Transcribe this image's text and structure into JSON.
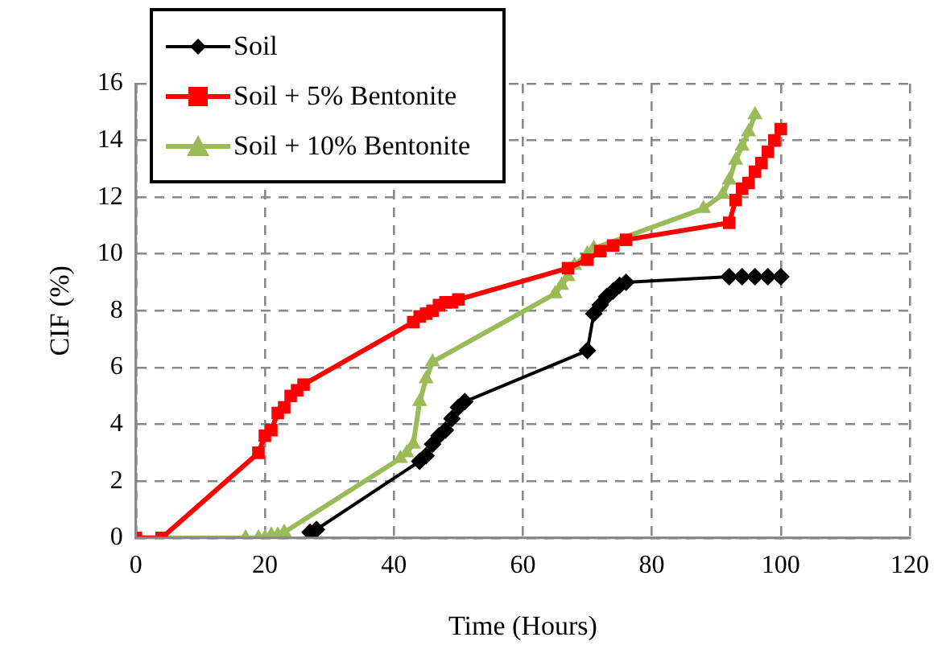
{
  "chart_data": {
    "type": "line",
    "xlabel": "Time (Hours)",
    "ylabel": "CIF (%)",
    "xlim": [
      0,
      120
    ],
    "xticks": [
      0,
      20,
      40,
      60,
      80,
      100,
      120
    ],
    "ylim": [
      0,
      16
    ],
    "yticks": [
      0,
      2,
      4,
      6,
      8,
      10,
      12,
      14,
      16
    ],
    "grid": true,
    "legend": "top left",
    "line_style": "solid",
    "series": [
      {
        "name": "Soil",
        "color": "#000000",
        "marker": "diamond",
        "x": [
          27,
          28,
          44,
          45,
          46,
          47,
          48,
          49,
          50,
          51,
          70,
          71,
          72,
          73,
          74,
          75,
          76,
          92,
          94,
          96,
          98,
          100
        ],
        "values": [
          0.2,
          0.3,
          2.7,
          2.9,
          3.3,
          3.6,
          3.8,
          4.2,
          4.6,
          4.8,
          6.6,
          7.9,
          8.2,
          8.5,
          8.7,
          8.9,
          9.0,
          9.2,
          9.2,
          9.2,
          9.2,
          9.2
        ]
      },
      {
        "name": "Soil + 5% Bentonite",
        "color": "#ff0000",
        "marker": "square",
        "x": [
          0,
          4,
          19,
          20,
          21,
          22,
          23,
          24,
          25,
          26,
          43,
          44,
          45,
          46,
          47,
          48,
          49,
          50,
          67,
          70,
          72,
          74,
          76,
          92,
          93,
          94,
          95,
          96,
          97,
          98,
          99,
          100
        ],
        "values": [
          0,
          0,
          3.0,
          3.6,
          3.8,
          4.4,
          4.6,
          5.0,
          5.2,
          5.4,
          7.6,
          7.8,
          7.9,
          8.0,
          8.2,
          8.3,
          8.3,
          8.4,
          9.5,
          9.8,
          10.1,
          10.3,
          10.5,
          11.1,
          11.9,
          12.3,
          12.5,
          12.9,
          13.2,
          13.6,
          14.0,
          14.4
        ]
      },
      {
        "name": "Soil + 10% Bentonite",
        "color": "#9bbb59",
        "marker": "triangle",
        "x": [
          0,
          17,
          19,
          20,
          21,
          22,
          23,
          41,
          42,
          43,
          44,
          45,
          46,
          65,
          66,
          67,
          68,
          70,
          71,
          88,
          91,
          92,
          93,
          94,
          95,
          96
        ],
        "values": [
          0,
          0,
          0,
          0,
          0.1,
          0.1,
          0.2,
          2.8,
          3.0,
          3.3,
          4.8,
          5.6,
          6.2,
          8.6,
          8.9,
          9.2,
          9.6,
          10.0,
          10.2,
          11.6,
          12.1,
          12.6,
          13.3,
          13.8,
          14.3,
          14.9
        ]
      }
    ]
  }
}
